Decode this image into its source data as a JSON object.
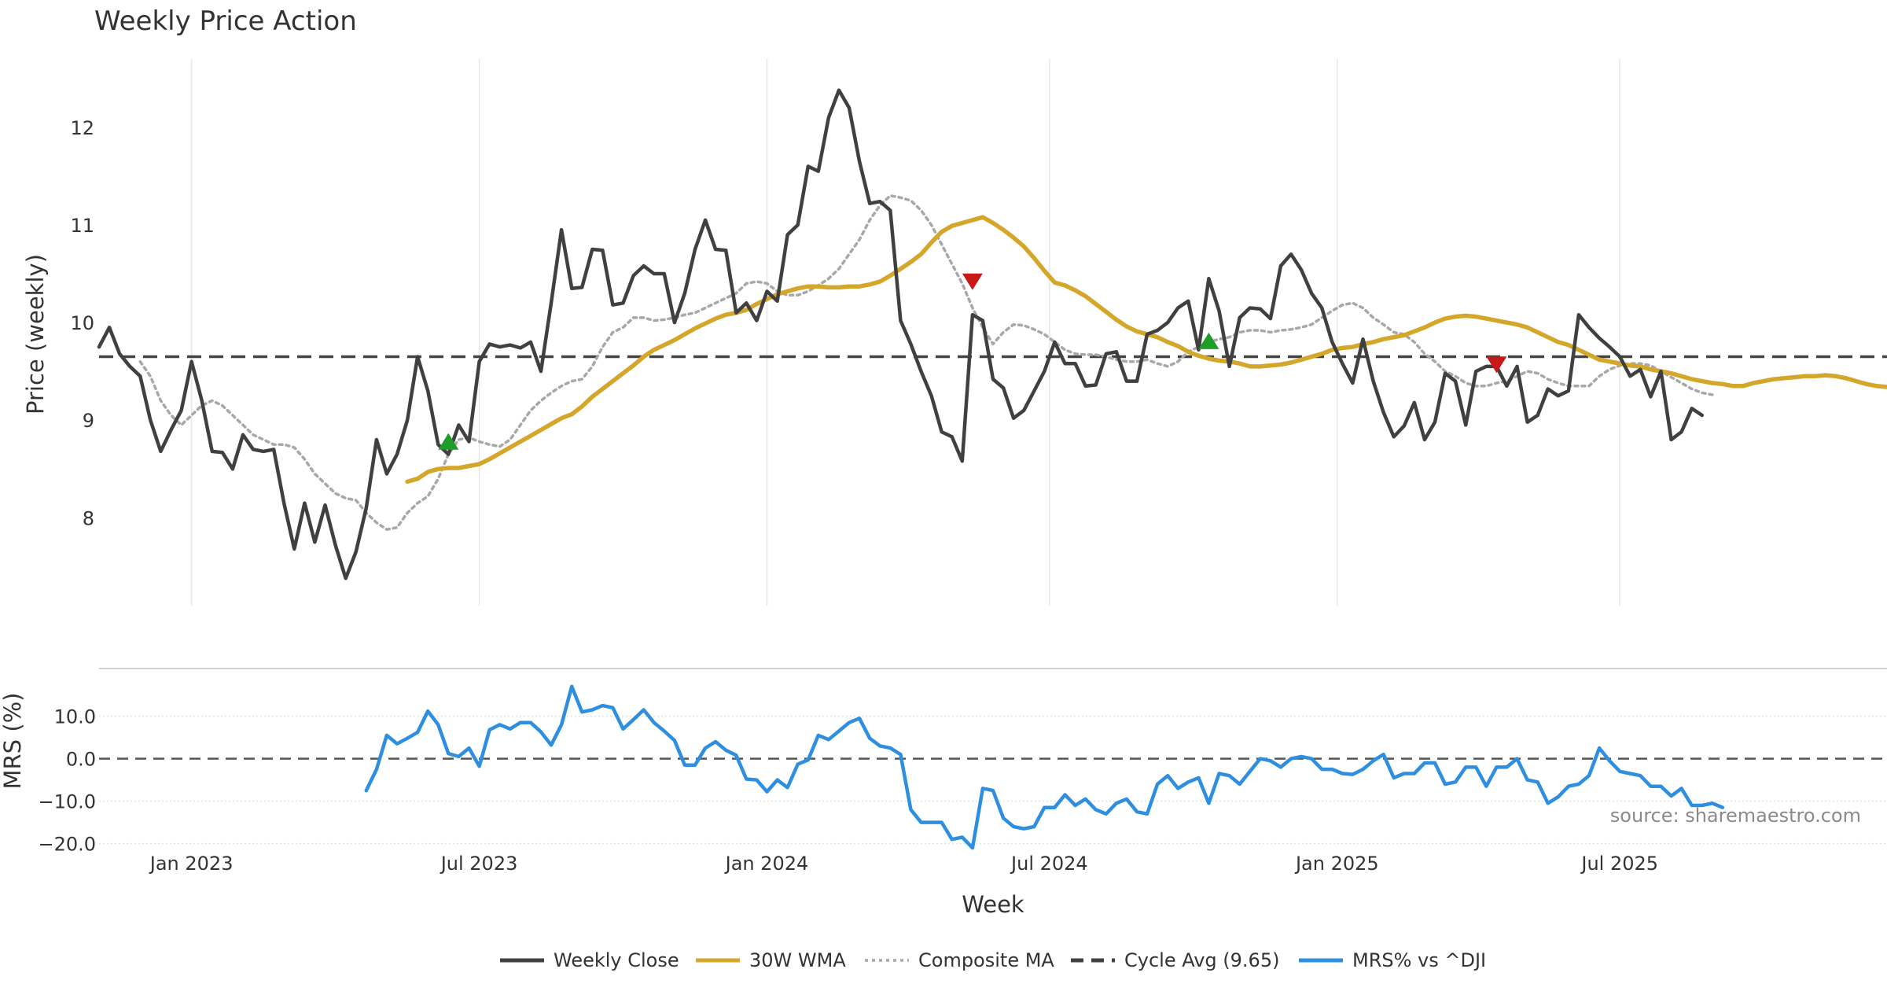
{
  "chart_data": {
    "type": "line",
    "title": "Weekly Price Action",
    "price_panel": {
      "ylabel": "Price (weekly)",
      "ylim": [
        7.1,
        12.7
      ],
      "yticks": [
        8,
        9,
        10,
        11,
        12
      ],
      "x_range_weeks": [
        0,
        174
      ],
      "cycle_avg": 9.65,
      "series": [
        {
          "name": "Weekly Close",
          "color": "#404040",
          "style": "solid",
          "start_week": 0,
          "values": [
            9.75,
            9.95,
            9.68,
            9.55,
            9.45,
            9.0,
            8.68,
            8.9,
            9.1,
            9.6,
            9.2,
            8.68,
            8.67,
            8.5,
            8.85,
            8.7,
            8.68,
            8.7,
            8.15,
            7.68,
            8.15,
            7.75,
            8.13,
            7.72,
            7.38,
            7.65,
            8.1,
            8.8,
            8.45,
            8.65,
            9.0,
            9.65,
            9.3,
            8.75,
            8.65,
            8.95,
            8.78,
            9.6,
            9.78,
            9.75,
            9.77,
            9.74,
            9.8,
            9.5,
            10.2,
            10.95,
            10.35,
            10.36,
            10.75,
            10.74,
            10.18,
            10.2,
            10.48,
            10.58,
            10.5,
            10.5,
            10.0,
            10.3,
            10.75,
            11.05,
            10.75,
            10.74,
            10.1,
            10.2,
            10.02,
            10.32,
            10.22,
            10.9,
            11.0,
            11.6,
            11.55,
            12.1,
            12.38,
            12.2,
            11.65,
            11.22,
            11.24,
            11.15,
            10.02,
            9.78,
            9.5,
            9.25,
            8.88,
            8.83,
            8.58,
            10.08,
            10.02,
            9.42,
            9.33,
            9.02,
            9.1,
            9.3,
            9.5,
            9.8,
            9.58,
            9.58,
            9.35,
            9.36,
            9.68,
            9.7,
            9.4,
            9.4,
            9.88,
            9.92,
            10.0,
            10.15,
            10.22,
            9.72,
            10.45,
            10.12,
            9.55,
            10.05,
            10.15,
            10.14,
            10.04,
            10.58,
            10.7,
            10.54,
            10.3,
            10.15,
            9.8,
            9.58,
            9.38,
            9.83,
            9.4,
            9.08,
            8.83,
            8.94,
            9.18,
            8.8,
            8.98,
            9.48,
            9.4,
            8.95,
            9.5,
            9.55,
            9.55,
            9.35,
            9.55,
            8.98,
            9.05,
            9.32,
            9.25,
            9.3,
            10.08,
            9.95,
            9.84,
            9.75,
            9.65,
            9.45,
            9.52,
            9.24,
            9.5,
            8.8,
            8.88,
            9.12,
            9.05
          ]
        },
        {
          "name": "30W WMA",
          "color": "#D4A62A",
          "style": "solid",
          "start_week": 30,
          "values": [
            8.37,
            8.4,
            8.47,
            8.5,
            8.51,
            8.51,
            8.53,
            8.55,
            8.6,
            8.66,
            8.72,
            8.78,
            8.84,
            8.9,
            8.96,
            9.02,
            9.06,
            9.14,
            9.24,
            9.32,
            9.4,
            9.48,
            9.56,
            9.65,
            9.72,
            9.77,
            9.82,
            9.88,
            9.94,
            9.99,
            10.04,
            10.08,
            10.1,
            10.13,
            10.19,
            10.24,
            10.29,
            10.32,
            10.35,
            10.37,
            10.37,
            10.36,
            10.36,
            10.37,
            10.37,
            10.39,
            10.42,
            10.48,
            10.55,
            10.62,
            10.7,
            10.82,
            10.93,
            10.99,
            11.02,
            11.05,
            11.08,
            11.02,
            10.95,
            10.87,
            10.78,
            10.66,
            10.53,
            10.41,
            10.38,
            10.33,
            10.27,
            10.19,
            10.11,
            10.03,
            9.96,
            9.91,
            9.88,
            9.85,
            9.8,
            9.76,
            9.7,
            9.66,
            9.63,
            9.61,
            9.6,
            9.58,
            9.55,
            9.55,
            9.56,
            9.57,
            9.59,
            9.62,
            9.65,
            9.68,
            9.72,
            9.74,
            9.75,
            9.78,
            9.8,
            9.83,
            9.85,
            9.87,
            9.91,
            9.95,
            10.0,
            10.04,
            10.06,
            10.07,
            10.06,
            10.04,
            10.02,
            10.0,
            9.98,
            9.95,
            9.9,
            9.85,
            9.8,
            9.77,
            9.72,
            9.67,
            9.62,
            9.6,
            9.58,
            9.56,
            9.55,
            9.52,
            9.5,
            9.48,
            9.45,
            9.42,
            9.4,
            9.38,
            9.37,
            9.35,
            9.35,
            9.38,
            9.4,
            9.42,
            9.43,
            9.44,
            9.45,
            9.45,
            9.46,
            9.45,
            9.43,
            9.4,
            9.37,
            9.35,
            9.34
          ]
        },
        {
          "name": "Composite MA",
          "color": "#A8A8A8",
          "style": "dotted",
          "start_week": 4,
          "values": [
            9.6,
            9.45,
            9.2,
            9.05,
            8.95,
            9.05,
            9.15,
            9.2,
            9.15,
            9.05,
            8.95,
            8.85,
            8.8,
            8.75,
            8.75,
            8.72,
            8.6,
            8.45,
            8.35,
            8.25,
            8.2,
            8.18,
            8.05,
            7.95,
            7.88,
            7.9,
            8.05,
            8.15,
            8.22,
            8.4,
            8.65,
            8.8,
            8.82,
            8.78,
            8.75,
            8.73,
            8.8,
            8.95,
            9.1,
            9.2,
            9.28,
            9.35,
            9.4,
            9.42,
            9.55,
            9.75,
            9.9,
            9.95,
            10.05,
            10.05,
            10.02,
            10.03,
            10.05,
            10.08,
            10.1,
            10.15,
            10.2,
            10.25,
            10.3,
            10.4,
            10.42,
            10.4,
            10.32,
            10.28,
            10.28,
            10.32,
            10.38,
            10.45,
            10.55,
            10.7,
            10.85,
            11.05,
            11.2,
            11.3,
            11.28,
            11.25,
            11.15,
            11.0,
            10.8,
            10.6,
            10.4,
            10.15,
            9.95,
            9.78,
            9.9,
            9.98,
            9.97,
            9.93,
            9.88,
            9.8,
            9.72,
            9.68,
            9.67,
            9.67,
            9.65,
            9.62,
            9.6,
            9.6,
            9.62,
            9.58,
            9.55,
            9.6,
            9.7,
            9.75,
            9.8,
            9.83,
            9.85,
            9.9,
            9.92,
            9.92,
            9.9,
            9.92,
            9.93,
            9.95,
            9.98,
            10.05,
            10.12,
            10.18,
            10.2,
            10.15,
            10.05,
            9.98,
            9.9,
            9.88,
            9.8,
            9.68,
            9.6,
            9.5,
            9.45,
            9.38,
            9.35,
            9.35,
            9.38,
            9.4,
            9.45,
            9.5,
            9.48,
            9.42,
            9.38,
            9.35,
            9.35,
            9.35,
            9.45,
            9.52,
            9.56,
            9.58,
            9.58,
            9.56,
            9.5,
            9.44,
            9.38,
            9.32,
            9.28,
            9.26
          ]
        }
      ],
      "signals": [
        {
          "type": "buy",
          "week": 34,
          "value": 8.77
        },
        {
          "type": "sell",
          "week": 85,
          "value": 10.43
        },
        {
          "type": "buy",
          "week": 108,
          "value": 9.8
        },
        {
          "type": "sell",
          "week": 136,
          "value": 9.58
        }
      ]
    },
    "mrs_panel": {
      "ylabel": "MRS (%)",
      "ylim": [
        -21,
        19
      ],
      "yticks": [
        10.0,
        0.0,
        -10.0,
        -20.0
      ],
      "ytick_labels": [
        "10.0",
        "0.0",
        "−10.0",
        "−20.0"
      ],
      "series": {
        "name": "MRS% vs ^DJI",
        "color": "#2E8FE0",
        "start_week": 26,
        "values": [
          -7.5,
          -2.5,
          5.5,
          3.5,
          4.8,
          6.2,
          11.2,
          8.0,
          1.2,
          0.5,
          2.5,
          -1.8,
          6.8,
          8.0,
          7.0,
          8.5,
          8.5,
          6.3,
          3.2,
          8.0,
          17.0,
          11.0,
          11.5,
          12.5,
          12.0,
          7.0,
          9.2,
          11.5,
          8.5,
          6.5,
          4.3,
          -1.5,
          -1.5,
          2.5,
          4.0,
          2.0,
          0.8,
          -4.8,
          -5.0,
          -7.8,
          -5.0,
          -6.8,
          -1.3,
          -0.3,
          5.5,
          4.5,
          6.5,
          8.5,
          9.5,
          4.8,
          3.0,
          2.5,
          1.0,
          -12.0,
          -15.0,
          -15.0,
          -15.0,
          -19.0,
          -18.5,
          -21.0,
          -7.0,
          -7.5,
          -14.0,
          -16.0,
          -16.5,
          -16.0,
          -11.5,
          -11.5,
          -8.5,
          -11.0,
          -9.5,
          -12.0,
          -13.0,
          -10.5,
          -9.5,
          -12.5,
          -13.0,
          -6.0,
          -4.0,
          -7.0,
          -5.5,
          -4.5,
          -10.5,
          -3.5,
          -4.0,
          -6.0,
          -3.0,
          0.0,
          -0.5,
          -2.0,
          0.0,
          0.5,
          0.0,
          -2.5,
          -2.5,
          -3.5,
          -3.7,
          -2.5,
          -0.5,
          1.0,
          -4.5,
          -3.5,
          -3.5,
          -1.0,
          -1.0,
          -6.0,
          -5.5,
          -2.0,
          -2.0,
          -6.5,
          -2.0,
          -2.0,
          0.0,
          -5.0,
          -5.5,
          -10.5,
          -9.0,
          -6.5,
          -6.0,
          -4.0,
          2.5,
          -0.5,
          -3.0,
          -3.5,
          -4.0,
          -6.5,
          -6.5,
          -8.8,
          -7.0,
          -11.0,
          -11.0,
          -10.5,
          -11.5
        ]
      }
    },
    "x_axis": {
      "xlabel": "Week",
      "ticks": [
        {
          "label": "Jan 2023",
          "week": 9
        },
        {
          "label": "Jul 2023",
          "week": 37
        },
        {
          "label": "Jan 2024",
          "week": 65
        },
        {
          "label": "Jul 2024",
          "week": 92.5
        },
        {
          "label": "Jan 2025",
          "week": 120.5
        },
        {
          "label": "Jul 2025",
          "week": 148
        }
      ]
    },
    "legend": {
      "placement": "bottom-center",
      "items": [
        {
          "label": "Weekly Close",
          "color": "#404040",
          "style": "solid"
        },
        {
          "label": "30W WMA",
          "color": "#D4A62A",
          "style": "solid"
        },
        {
          "label": "Composite MA",
          "color": "#A8A8A8",
          "style": "dotted"
        },
        {
          "label": "Cycle Avg (9.65)",
          "color": "#404040",
          "style": "dashed"
        },
        {
          "label": "MRS% vs ^DJI",
          "color": "#2E8FE0",
          "style": "solid"
        }
      ]
    },
    "source_text": "source: sharemaestro.com",
    "signal_colors": {
      "buy": "#1E9E28",
      "sell": "#C81818"
    }
  }
}
